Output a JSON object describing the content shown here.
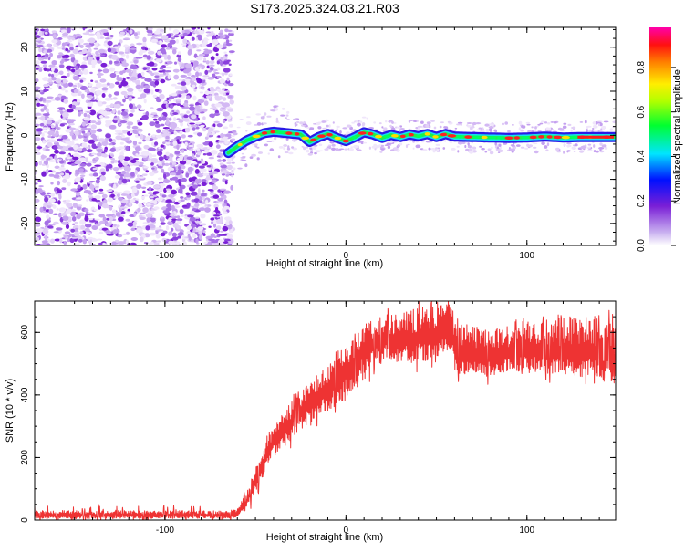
{
  "figure": {
    "title": "S173.2025.324.03.21.R03"
  },
  "chart_data": [
    {
      "type": "heatmap",
      "title": "S173.2025.324.03.21.R03",
      "xlabel": "Height of straight line (km)",
      "ylabel": "Frequency (Hz)",
      "xlim": [
        -172,
        149
      ],
      "ylim": [
        -25,
        24.5
      ],
      "x_ticks": [
        -100,
        0,
        100
      ],
      "x_tick_labels": [
        "-100",
        "0",
        "100"
      ],
      "y_ticks": [
        -20,
        -10,
        0,
        10,
        20
      ],
      "y_tick_labels": [
        "-20",
        "-10",
        "0",
        "10",
        "20"
      ],
      "colorbar": {
        "label": "Normalized spectral amplitude",
        "range": [
          0,
          0.98
        ],
        "ticks": [
          0,
          0.2,
          0.4,
          0.6,
          0.8
        ],
        "tick_labels": [
          "0.0",
          "0.2",
          "0.4",
          "0.6",
          "0.8"
        ],
        "colormap": [
          "#ffffff",
          "#8a2be2",
          "#0000ff",
          "#00ffff",
          "#00ff00",
          "#ffff00",
          "#ff8000",
          "#ff0000",
          "#ff00ff"
        ]
      },
      "noise_region_x": [
        -172,
        -65
      ],
      "signal_trace": {
        "x": [
          -65,
          -60,
          -55,
          -50,
          -45,
          -40,
          -35,
          -30,
          -25,
          -20,
          -15,
          -10,
          -5,
          0,
          5,
          10,
          15,
          20,
          25,
          30,
          35,
          40,
          45,
          50,
          55,
          60,
          70,
          80,
          90,
          100,
          110,
          120,
          130,
          140,
          149
        ],
        "y": [
          -4,
          -2.5,
          -1.2,
          -0.3,
          0.5,
          0.8,
          0.6,
          0.4,
          0.2,
          -1.5,
          -0.4,
          0.3,
          -0.6,
          -1.3,
          -0.4,
          0.7,
          0.2,
          -0.6,
          0.1,
          -0.4,
          0.2,
          -0.2,
          0.3,
          -0.4,
          0.3,
          -0.3,
          -0.4,
          -0.5,
          -0.6,
          -0.5,
          -0.3,
          -0.5,
          -0.4,
          -0.4,
          -0.4
        ]
      }
    },
    {
      "type": "line",
      "xlabel": "Height of straight line (km)",
      "ylabel": "SNR (10 * v/v)",
      "xlim": [
        -172,
        149
      ],
      "ylim": [
        0,
        700
      ],
      "x_ticks": [
        -100,
        0,
        100
      ],
      "x_tick_labels": [
        "-100",
        "0",
        "100"
      ],
      "y_ticks": [
        0,
        200,
        400,
        600
      ],
      "y_tick_labels": [
        "0",
        "200",
        "400",
        "600"
      ],
      "series": [
        {
          "name": "SNR",
          "color": "#ee3333",
          "envelope_x": [
            -172,
            -65,
            -60,
            -55,
            -50,
            -45,
            -40,
            -35,
            -30,
            -20,
            -10,
            0,
            10,
            20,
            30,
            40,
            50,
            58,
            61,
            70,
            80,
            90,
            100,
            110,
            120,
            130,
            140,
            149
          ],
          "envelope_low": [
            5,
            5,
            10,
            40,
            90,
            150,
            200,
            230,
            260,
            310,
            350,
            380,
            450,
            510,
            500,
            500,
            520,
            540,
            460,
            460,
            460,
            470,
            470,
            470,
            460,
            460,
            460,
            440
          ],
          "envelope_high": [
            30,
            30,
            40,
            90,
            170,
            240,
            300,
            340,
            380,
            440,
            500,
            560,
            620,
            660,
            660,
            680,
            690,
            690,
            650,
            620,
            620,
            620,
            650,
            640,
            650,
            650,
            650,
            660
          ],
          "center": [
            15,
            15,
            20,
            55,
            120,
            190,
            250,
            280,
            310,
            370,
            420,
            470,
            540,
            580,
            570,
            580,
            590,
            600,
            520,
            520,
            520,
            530,
            540,
            540,
            530,
            530,
            530,
            530
          ]
        }
      ]
    }
  ]
}
